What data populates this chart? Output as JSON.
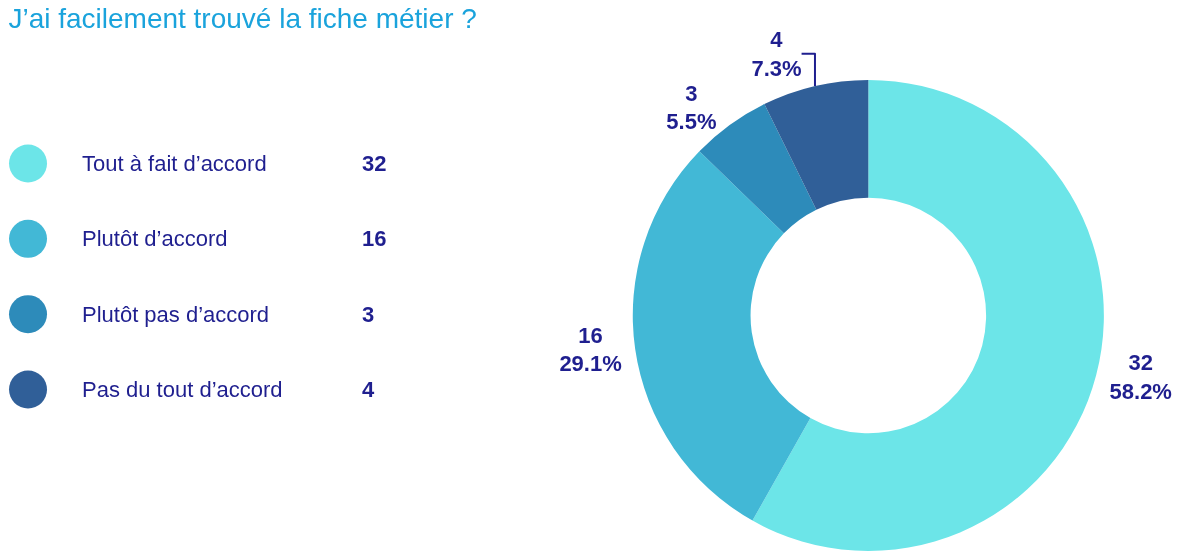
{
  "chart_data": {
    "type": "donut",
    "title": "J’ai facilement trouvé la fiche métier ?",
    "categories": [
      "Tout à fait d’accord",
      "Plutôt d’accord",
      "Plutôt pas d’accord",
      "Pas du tout d’accord"
    ],
    "values": [
      32,
      16,
      3,
      4
    ],
    "colors": [
      "#6ce5e8",
      "#42b8d6",
      "#2d8bba",
      "#305f98"
    ],
    "value_labels": [
      "32\n58.2%",
      "16\n29.1%",
      "3\n5.5%",
      "4\n7.3%"
    ],
    "annotations": [
      "32",
      "16",
      "3",
      "4"
    ],
    "legend": "left"
  }
}
